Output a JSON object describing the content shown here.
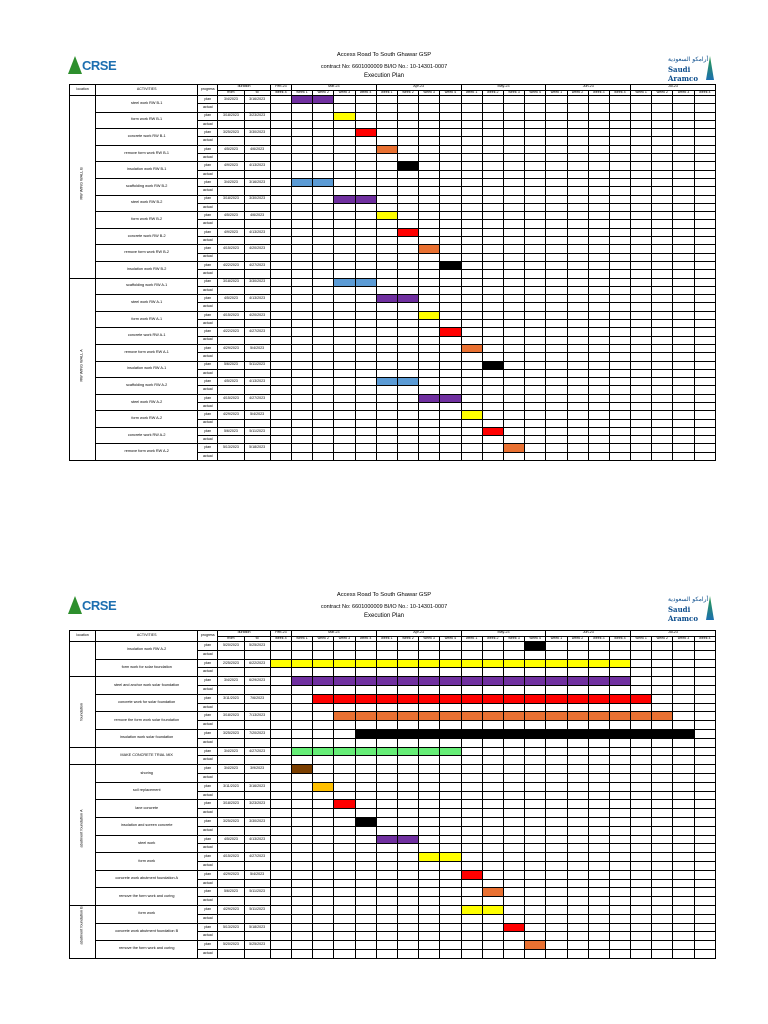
{
  "document_title": "Access Road To South Ghawar GSP",
  "contract_line": "contract No: 6601000009 BI/IO No.: 10-14301-0007",
  "plan_title": "Execution Plan",
  "logos": {
    "left": "CRSE",
    "right_ar": "أرامكو السعودية",
    "right_en": "Saudi Aramco"
  },
  "headers": {
    "location": "location",
    "activities": "ACTIVITIES",
    "progress": "progress",
    "duration": "duration",
    "from": "from",
    "to": "to",
    "months": [
      "Feb-23",
      "Mar-23",
      "Apr-23",
      "May-23",
      "Jun-23",
      "Jul-23"
    ],
    "weeks": [
      "week 4",
      "week 1",
      "week 2",
      "week 3",
      "week 4",
      "week 1",
      "week 2",
      "week 3",
      "week 4",
      "week 1",
      "week 2",
      "week 3",
      "week 4",
      "week 1",
      "week 2",
      "week 3",
      "week 4",
      "week 1",
      "week 2",
      "week 3",
      "week 4"
    ]
  },
  "colors": {
    "purple": "#7030a0",
    "yellow": "#ffff00",
    "red": "#ff0000",
    "orange": "#e97132",
    "black": "#000000",
    "blue": "#5b9bd5",
    "green": "#66ee77",
    "brown": "#7b3f00",
    "gold": "#ffc000"
  },
  "sheets": [
    {
      "groups": [
        {
          "location": "RW WING WALL B",
          "rows": [
            {
              "activity": "steel work RW B-1",
              "from": "3/4/2023",
              "to": "3/16/2023",
              "bar": [
                1,
                2
              ],
              "color": "purple"
            },
            {
              "activity": "form work RW B-1",
              "from": "3/18/2023",
              "to": "3/23/2023",
              "bar": [
                3,
                3
              ],
              "color": "yellow"
            },
            {
              "activity": "concrete work RW B-1",
              "from": "3/25/2023",
              "to": "3/30/2023",
              "bar": [
                4,
                4
              ],
              "color": "red"
            },
            {
              "activity": "remove form work RW B-1",
              "from": "4/5/2023",
              "to": "4/6/2023",
              "bar": [
                5,
                5
              ],
              "color": "orange"
            },
            {
              "activity": "insolation work RW B-1",
              "from": "4/9/2023",
              "to": "4/13/2023",
              "bar": [
                6,
                6
              ],
              "color": "black"
            },
            {
              "activity": "scaffolding work RW B-2",
              "from": "3/4/2023",
              "to": "3/16/2023",
              "bar": [
                1,
                2
              ],
              "color": "blue"
            },
            {
              "activity": "steel work RW B-2",
              "from": "3/18/2023",
              "to": "3/30/2023",
              "bar": [
                3,
                4
              ],
              "color": "purple"
            },
            {
              "activity": "form work RW B-2",
              "from": "4/5/2023",
              "to": "4/6/2023",
              "bar": [
                5,
                5
              ],
              "color": "yellow"
            },
            {
              "activity": "concrete work RW B-2",
              "from": "4/9/2023",
              "to": "4/13/2023",
              "bar": [
                6,
                6
              ],
              "color": "red"
            },
            {
              "activity": "remove form work RW B-2",
              "from": "4/15/2023",
              "to": "4/20/2023",
              "bar": [
                7,
                7
              ],
              "color": "orange"
            },
            {
              "activity": "insolation work RW B-2",
              "from": "4/22/2023",
              "to": "4/27/2023",
              "bar": [
                8,
                8
              ],
              "color": "black"
            }
          ]
        },
        {
          "location": "RW WING WALL A",
          "rows": [
            {
              "activity": "scaffolding work RW A-1",
              "from": "3/18/2023",
              "to": "3/30/2023",
              "bar": [
                3,
                4
              ],
              "color": "blue"
            },
            {
              "activity": "steel work RW A-1",
              "from": "4/5/2023",
              "to": "4/13/2023",
              "bar": [
                5,
                6
              ],
              "color": "purple"
            },
            {
              "activity": "form work RW A-1",
              "from": "4/15/2023",
              "to": "4/20/2023",
              "bar": [
                7,
                7
              ],
              "color": "yellow"
            },
            {
              "activity": "concrete work RW A-1",
              "from": "4/22/2023",
              "to": "4/27/2023",
              "bar": [
                8,
                8
              ],
              "color": "red"
            },
            {
              "activity": "remove form work RW A-1",
              "from": "4/29/2023",
              "to": "5/4/2023",
              "bar": [
                9,
                9
              ],
              "color": "orange"
            },
            {
              "activity": "insolation work RW A-1",
              "from": "5/6/2023",
              "to": "5/11/2023",
              "bar": [
                10,
                10
              ],
              "color": "black"
            },
            {
              "activity": "scaffolding work RW A-2",
              "from": "4/5/2023",
              "to": "4/13/2023",
              "bar": [
                5,
                6
              ],
              "color": "blue"
            },
            {
              "activity": "steel work RW A-2",
              "from": "4/15/2023",
              "to": "4/27/2023",
              "bar": [
                7,
                8
              ],
              "color": "purple"
            },
            {
              "activity": "form work RW A-2",
              "from": "4/29/2023",
              "to": "5/4/2023",
              "bar": [
                9,
                9
              ],
              "color": "yellow"
            },
            {
              "activity": "concrete work RW A-2",
              "from": "5/6/2023",
              "to": "5/11/2023",
              "bar": [
                10,
                10
              ],
              "color": "red"
            },
            {
              "activity": "remove form work RW A-2",
              "from": "5/13/2023",
              "to": "5/18/2023",
              "bar": [
                11,
                11
              ],
              "color": "orange"
            }
          ]
        }
      ]
    },
    {
      "groups": [
        {
          "location": "",
          "rows": [
            {
              "activity": "insolation work RW A-2",
              "from": "5/20/2023",
              "to": "5/25/2023",
              "bar": [
                12,
                12
              ],
              "color": "black"
            },
            {
              "activity": "form work for solar foundation",
              "from": "2/25/2023",
              "to": "6/22/2023",
              "bar": [
                0,
                16
              ],
              "color": "yellow"
            }
          ]
        },
        {
          "location": "foundation",
          "rows": [
            {
              "activity": "steel and anchor work solar foundation",
              "from": "3/4/2023",
              "to": "6/29/2023",
              "bar": [
                1,
                16
              ],
              "color": "purple"
            },
            {
              "activity": "concrete work for solar foundation",
              "from": "3/11/2023",
              "to": "7/6/2023",
              "bar": [
                2,
                17
              ],
              "color": "red"
            },
            {
              "activity": "remove the form work solar foundation",
              "from": "3/18/2023",
              "to": "7/13/2023",
              "bar": [
                3,
                18
              ],
              "color": "orange"
            },
            {
              "activity": "insolation work solar foundation",
              "from": "3/25/2023",
              "to": "7/20/2023",
              "bar": [
                4,
                19
              ],
              "color": "black"
            }
          ]
        },
        {
          "location": "",
          "rows": [
            {
              "activity": "MAKE CONCRETE TRIAL MIX",
              "from": "3/4/2023",
              "to": "4/27/2023",
              "bar": [
                1,
                8
              ],
              "color": "green"
            }
          ]
        },
        {
          "location": "abutment foundation A",
          "rows": [
            {
              "activity": "shoring",
              "from": "3/4/2023",
              "to": "3/9/2023",
              "bar": [
                1,
                1
              ],
              "color": "brown"
            },
            {
              "activity": "soil replacement",
              "from": "3/11/2023",
              "to": "3/16/2023",
              "bar": [
                2,
                2
              ],
              "color": "gold"
            },
            {
              "activity": "lane concrete",
              "from": "3/18/2023",
              "to": "3/23/2023",
              "bar": [
                3,
                3
              ],
              "color": "red"
            },
            {
              "activity": "insolation and screen concrete",
              "from": "3/25/2023",
              "to": "3/30/2023",
              "bar": [
                4,
                4
              ],
              "color": "black"
            },
            {
              "activity": "steel work",
              "from": "4/5/2023",
              "to": "4/13/2023",
              "bar": [
                5,
                6
              ],
              "color": "purple"
            },
            {
              "activity": "form work",
              "from": "4/15/2023",
              "to": "4/27/2023",
              "bar": [
                7,
                8
              ],
              "color": "yellow"
            },
            {
              "activity": "concrete work abutment foundation A",
              "from": "4/29/2023",
              "to": "5/4/2023",
              "bar": [
                9,
                9
              ],
              "color": "red"
            },
            {
              "activity": "remove the form work and curing",
              "from": "5/6/2023",
              "to": "5/11/2023",
              "bar": [
                10,
                10
              ],
              "color": "orange"
            }
          ]
        },
        {
          "location": "abutment foundation B",
          "rows": [
            {
              "activity": "form work",
              "from": "4/29/2023",
              "to": "5/11/2023",
              "bar": [
                9,
                10
              ],
              "color": "yellow"
            },
            {
              "activity": "concrete work abutment foundation B",
              "from": "5/13/2023",
              "to": "5/18/2023",
              "bar": [
                11,
                11
              ],
              "color": "red"
            },
            {
              "activity": "remove the form work and curing",
              "from": "5/20/2023",
              "to": "5/25/2023",
              "bar": [
                12,
                12
              ],
              "color": "orange"
            }
          ]
        }
      ]
    }
  ],
  "labels": {
    "plan": "plan",
    "actual": "actual"
  }
}
